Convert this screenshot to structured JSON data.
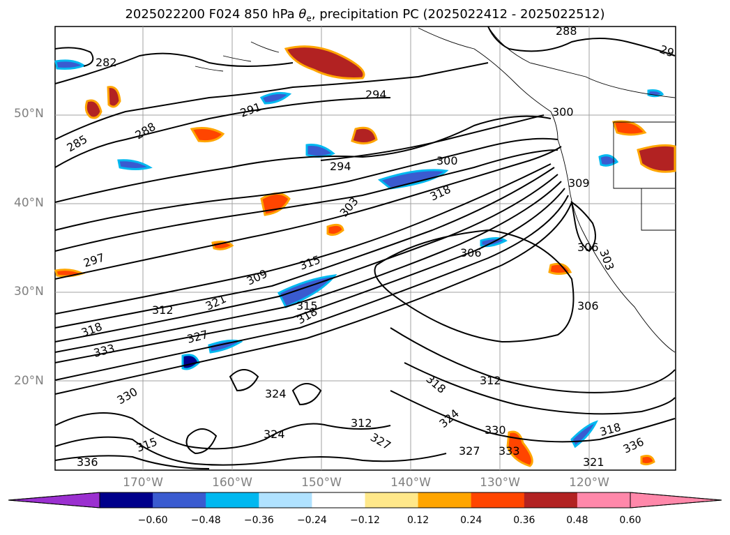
{
  "title": {
    "prefix": "2025022200 F024 850 hPa ",
    "theta": "θ",
    "sub_e": "e",
    "suffix": ", precipitation PC (2025022412 - 2025022512)"
  },
  "axes": {
    "lat_labels": [
      "50°N",
      "40°N",
      "30°N",
      "20°N"
    ],
    "lon_labels": [
      "170°W",
      "160°W",
      "150°W",
      "140°W",
      "130°W",
      "120°W"
    ]
  },
  "contour_labels": [
    "282",
    "285",
    "288",
    "291",
    "294",
    "294",
    "297",
    "300",
    "300",
    "303",
    "306",
    "306",
    "309",
    "312",
    "312",
    "315",
    "318",
    "318",
    "321",
    "324",
    "327",
    "330",
    "333",
    "336",
    "315",
    "318",
    "324",
    "327",
    "330",
    "333",
    "336",
    "318",
    "309",
    "303",
    "306",
    "312",
    "315",
    "318",
    "324",
    "327",
    "321",
    "288",
    "29"
  ],
  "colorbar": {
    "ticks": [
      "−0.60",
      "−0.48",
      "−0.36",
      "−0.24",
      "−0.12",
      "0.12",
      "0.24",
      "0.36",
      "0.48",
      "0.60"
    ],
    "colors": {
      "under": "#9b30d0",
      "bins": [
        "#00008b",
        "#3a5bd0",
        "#00b8f0",
        "#b0e2ff",
        "#ffffff",
        "#ffe88a",
        "#ffa500",
        "#ff4500",
        "#b22222",
        "#ff88aa"
      ]
    }
  },
  "chart_data": {
    "type": "heatmap",
    "variables": [
      "850 hPa theta-e contours",
      "precipitation PC shading"
    ],
    "lat_ticks": [
      50,
      40,
      30,
      20
    ],
    "lon_ticks": [
      -170,
      -160,
      -150,
      -140,
      -130,
      -120
    ],
    "colorbar_ticks": [
      -0.6,
      -0.48,
      -0.36,
      -0.24,
      -0.12,
      0.12,
      0.24,
      0.36,
      0.48,
      0.6
    ]
  }
}
